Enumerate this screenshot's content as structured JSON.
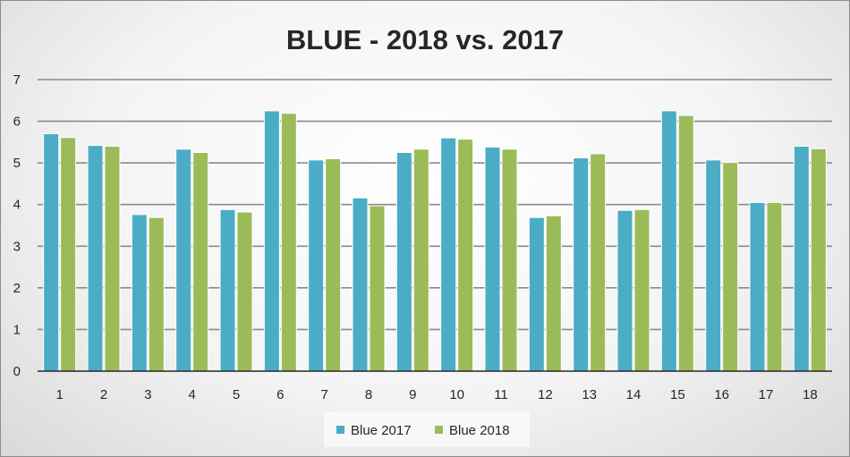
{
  "chart_data": {
    "type": "bar",
    "title": "BLUE - 2018 vs. 2017",
    "categories": [
      "1",
      "2",
      "3",
      "4",
      "5",
      "6",
      "7",
      "8",
      "9",
      "10",
      "11",
      "12",
      "13",
      "14",
      "15",
      "16",
      "17",
      "18"
    ],
    "series": [
      {
        "name": "Blue 2017",
        "color": "#4bacc6",
        "values": [
          5.7,
          5.42,
          3.76,
          5.33,
          3.88,
          6.25,
          5.07,
          4.16,
          5.25,
          5.6,
          5.38,
          3.69,
          5.12,
          3.86,
          6.25,
          5.07,
          4.05,
          5.4
        ]
      },
      {
        "name": "Blue 2018",
        "color": "#9bbb59",
        "values": [
          5.61,
          5.4,
          3.69,
          5.25,
          3.82,
          6.19,
          5.1,
          3.97,
          5.33,
          5.57,
          5.33,
          3.73,
          5.22,
          3.88,
          6.14,
          5.01,
          4.05,
          5.34
        ]
      }
    ],
    "ylim": [
      0,
      7
    ],
    "yticks": [
      "0",
      "1",
      "2",
      "3",
      "4",
      "5",
      "6",
      "7"
    ],
    "grid": true,
    "legend_position": "bottom",
    "xlabel": "",
    "ylabel": ""
  }
}
